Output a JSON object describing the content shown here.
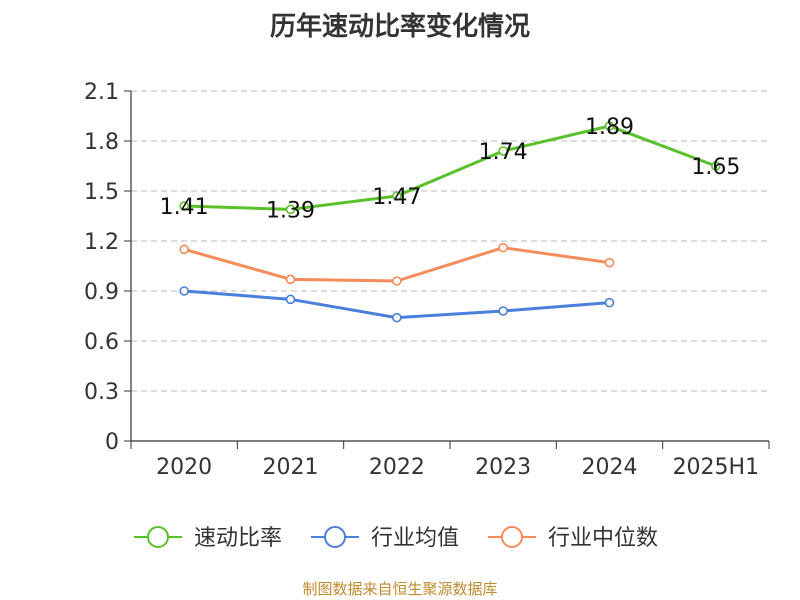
{
  "title": "历年速动比率变化情况",
  "footer": "制图数据来自恒生聚源数据库",
  "chart_data": {
    "type": "line",
    "categories": [
      "2020",
      "2021",
      "2022",
      "2023",
      "2024",
      "2025H1"
    ],
    "ylim": [
      0,
      2.1
    ],
    "yticks": [
      "0",
      "0.3",
      "0.6",
      "0.9",
      "1.2",
      "1.5",
      "1.8",
      "2.1"
    ],
    "grid": true,
    "legend_position": "bottom",
    "series": [
      {
        "name": "速动比率",
        "color": "#5bc12b",
        "values": [
          1.41,
          1.39,
          1.47,
          1.74,
          1.89,
          1.65
        ],
        "labels": [
          "1.41",
          "1.39",
          "1.47",
          "1.74",
          "1.89",
          "1.65"
        ],
        "show_labels": true
      },
      {
        "name": "行业均值",
        "color": "#4a7fdc",
        "values": [
          0.9,
          0.85,
          0.74,
          0.78,
          0.83,
          null
        ],
        "show_labels": false
      },
      {
        "name": "行业中位数",
        "color": "#f68c5b",
        "values": [
          1.15,
          0.97,
          0.96,
          1.16,
          1.07,
          null
        ],
        "show_labels": false
      }
    ]
  }
}
